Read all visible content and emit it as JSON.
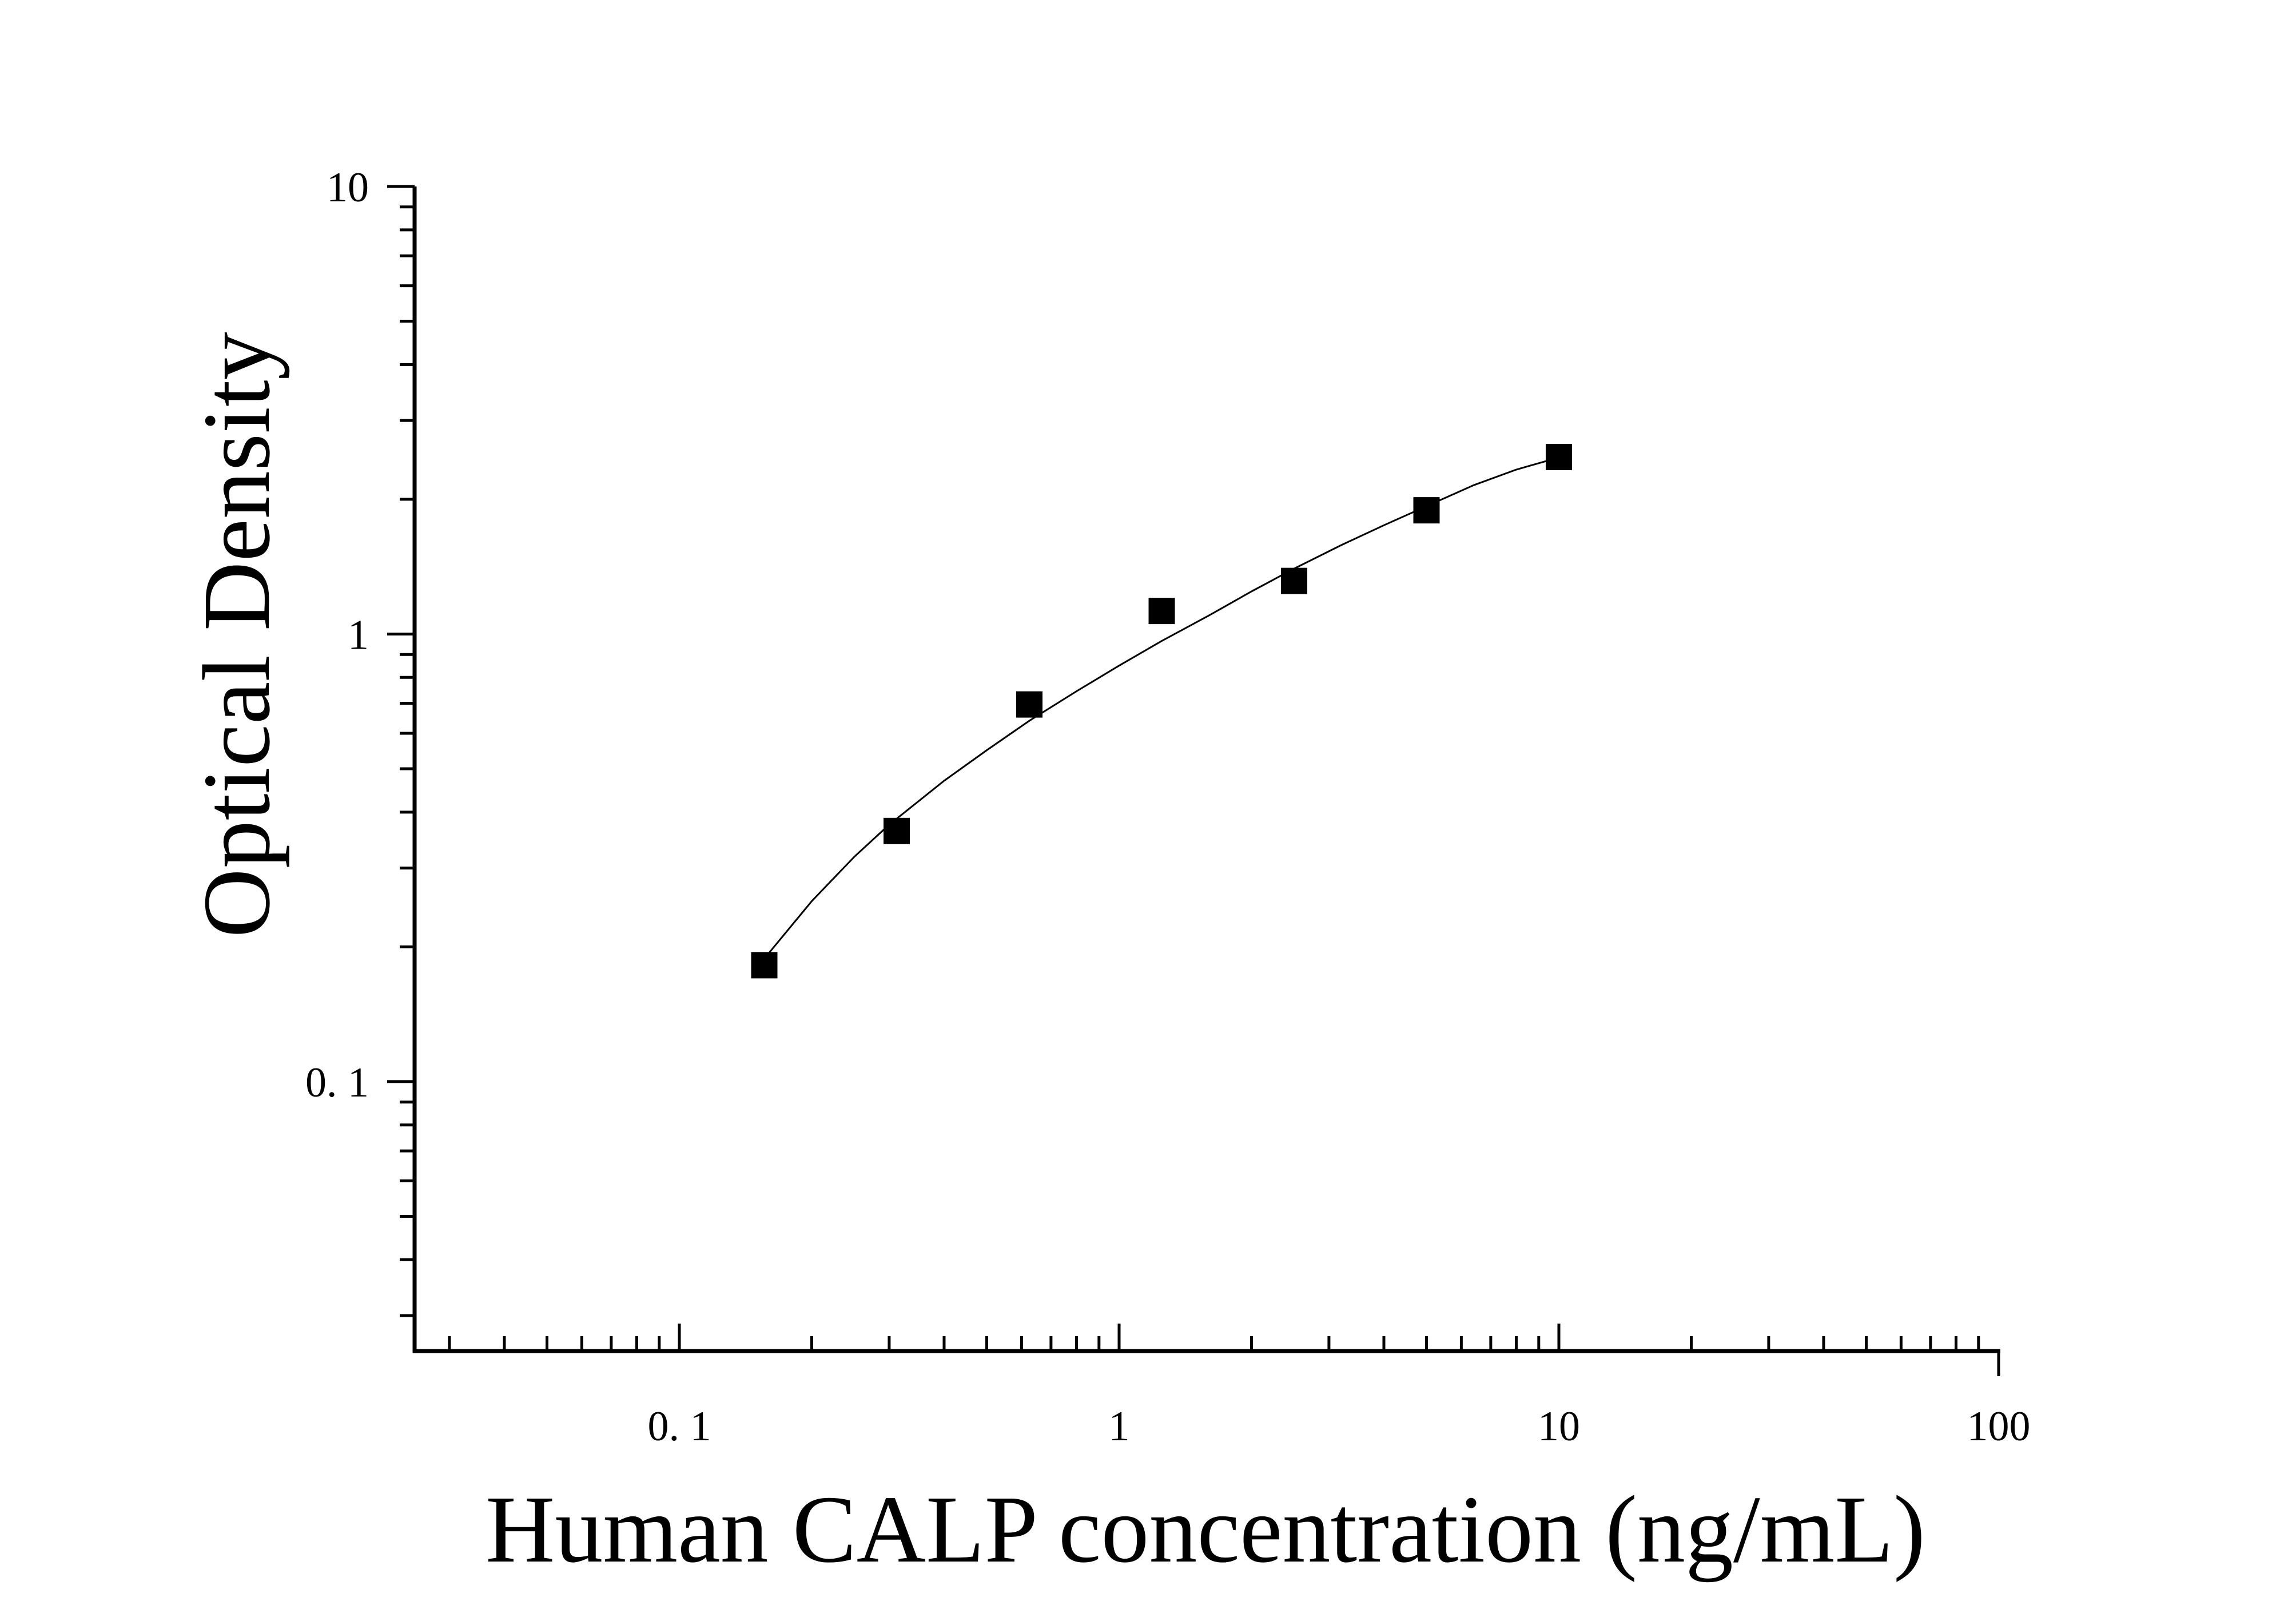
{
  "chart_data": {
    "type": "scatter",
    "title": "",
    "xlabel": "Human CALP concentration (ng/mL)",
    "ylabel": "Optical Density",
    "x_scale": "log",
    "y_scale": "log",
    "xlim": [
      0.025,
      100
    ],
    "ylim": [
      0.025,
      10
    ],
    "x_ticks": [
      {
        "value": 0.1,
        "label": "0. 1"
      },
      {
        "value": 1,
        "label": "1"
      },
      {
        "value": 10,
        "label": "10"
      },
      {
        "value": 100,
        "label": "100"
      }
    ],
    "y_ticks": [
      {
        "value": 0.1,
        "label": "0. 1"
      },
      {
        "value": 1,
        "label": "1"
      },
      {
        "value": 10,
        "label": "10"
      }
    ],
    "grid": false,
    "legend": "none",
    "series": [
      {
        "marker": "square",
        "color": "#000000",
        "x": [
          0.156,
          0.312,
          0.625,
          1.25,
          2.5,
          5,
          10
        ],
        "y": [
          0.182,
          0.363,
          0.696,
          1.126,
          1.314,
          1.89,
          2.486
        ]
      }
    ],
    "fit_curve": {
      "color": "#000000",
      "x": [
        0.16,
        0.2,
        0.25,
        0.3,
        0.4,
        0.5,
        0.625,
        0.8,
        1,
        1.25,
        1.6,
        2,
        2.5,
        3.2,
        4,
        5,
        6.4,
        8,
        10
      ],
      "y": [
        0.194,
        0.253,
        0.318,
        0.375,
        0.47,
        0.55,
        0.64,
        0.745,
        0.85,
        0.965,
        1.1,
        1.245,
        1.4,
        1.58,
        1.75,
        1.93,
        2.15,
        2.33,
        2.48
      ]
    }
  }
}
